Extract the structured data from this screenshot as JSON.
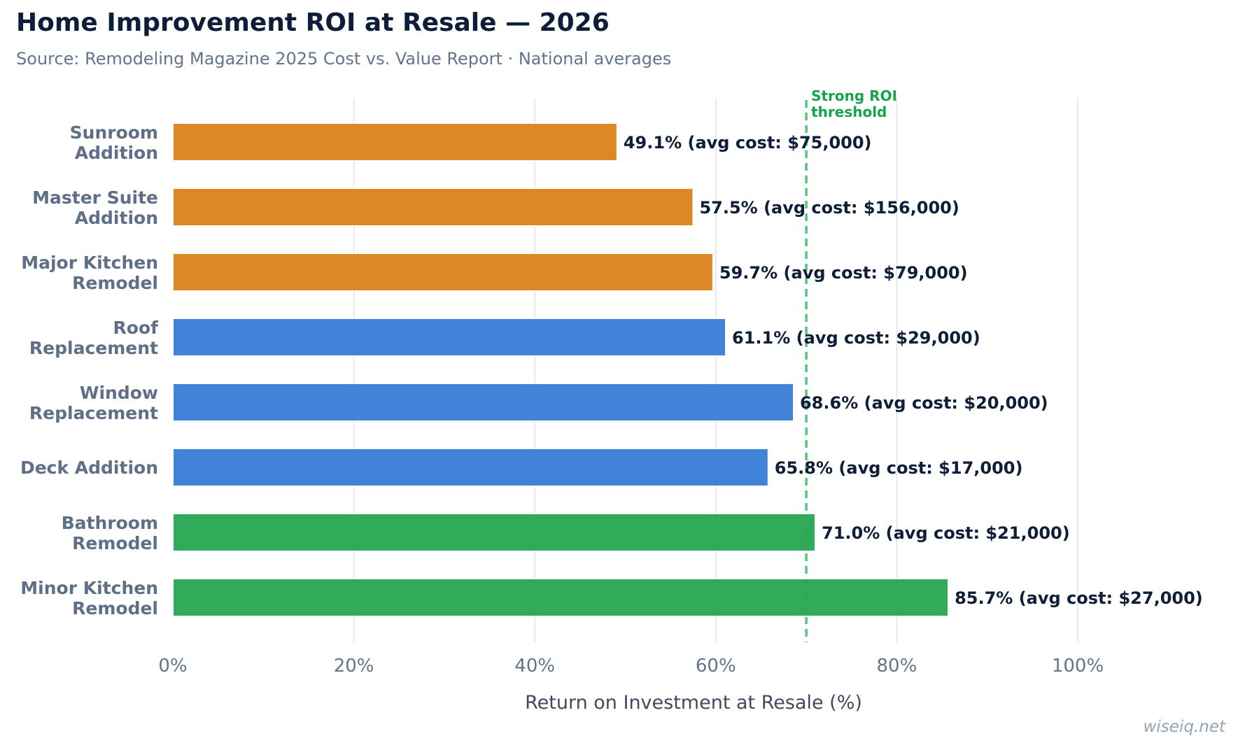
{
  "header": {
    "title": "Home Improvement ROI at Resale — 2026",
    "subtitle": "Source: Remodeling Magazine 2025 Cost vs. Value Report · National averages"
  },
  "watermark": "wiseiq.net",
  "chart_data": {
    "type": "bar",
    "orientation": "horizontal",
    "title": "Home Improvement ROI at Resale — 2026",
    "xlabel": "Return on Investment at Resale (%)",
    "ylabel": "",
    "xlim": [
      0,
      110
    ],
    "xticks": [
      0,
      20,
      40,
      60,
      80,
      100
    ],
    "xtick_labels": [
      "0%",
      "20%",
      "40%",
      "60%",
      "80%",
      "100%"
    ],
    "grid": "vertical",
    "categories": [
      [
        "Sunroom",
        "Addition"
      ],
      [
        "Master Suite",
        "Addition"
      ],
      [
        "Major Kitchen",
        "Remodel"
      ],
      [
        "Roof",
        "Replacement"
      ],
      [
        "Window",
        "Replacement"
      ],
      [
        "Deck Addition"
      ],
      [
        "Bathroom",
        "Remodel"
      ],
      [
        "Minor Kitchen",
        "Remodel"
      ]
    ],
    "values": [
      49.1,
      57.5,
      59.7,
      61.1,
      68.6,
      65.8,
      71.0,
      85.7
    ],
    "data_labels": [
      "49.1%  (avg cost: $75,000)",
      "57.5%  (avg cost: $156,000)",
      "59.7%  (avg cost: $79,000)",
      "61.1%  (avg cost: $29,000)",
      "68.6%  (avg cost: $20,000)",
      "65.8%  (avg cost: $17,000)",
      "71.0%  (avg cost: $21,000)",
      "85.7%  (avg cost: $27,000)"
    ],
    "colors": [
      "#dd8420",
      "#dd8420",
      "#dd8420",
      "#3a7fd8",
      "#3a7fd8",
      "#3a7fd8",
      "#2ba855",
      "#2ba855"
    ],
    "reference_line": {
      "value": 70,
      "label": [
        "Strong ROI",
        "threshold"
      ],
      "color": "#3fb86a",
      "style": "dashed"
    }
  }
}
